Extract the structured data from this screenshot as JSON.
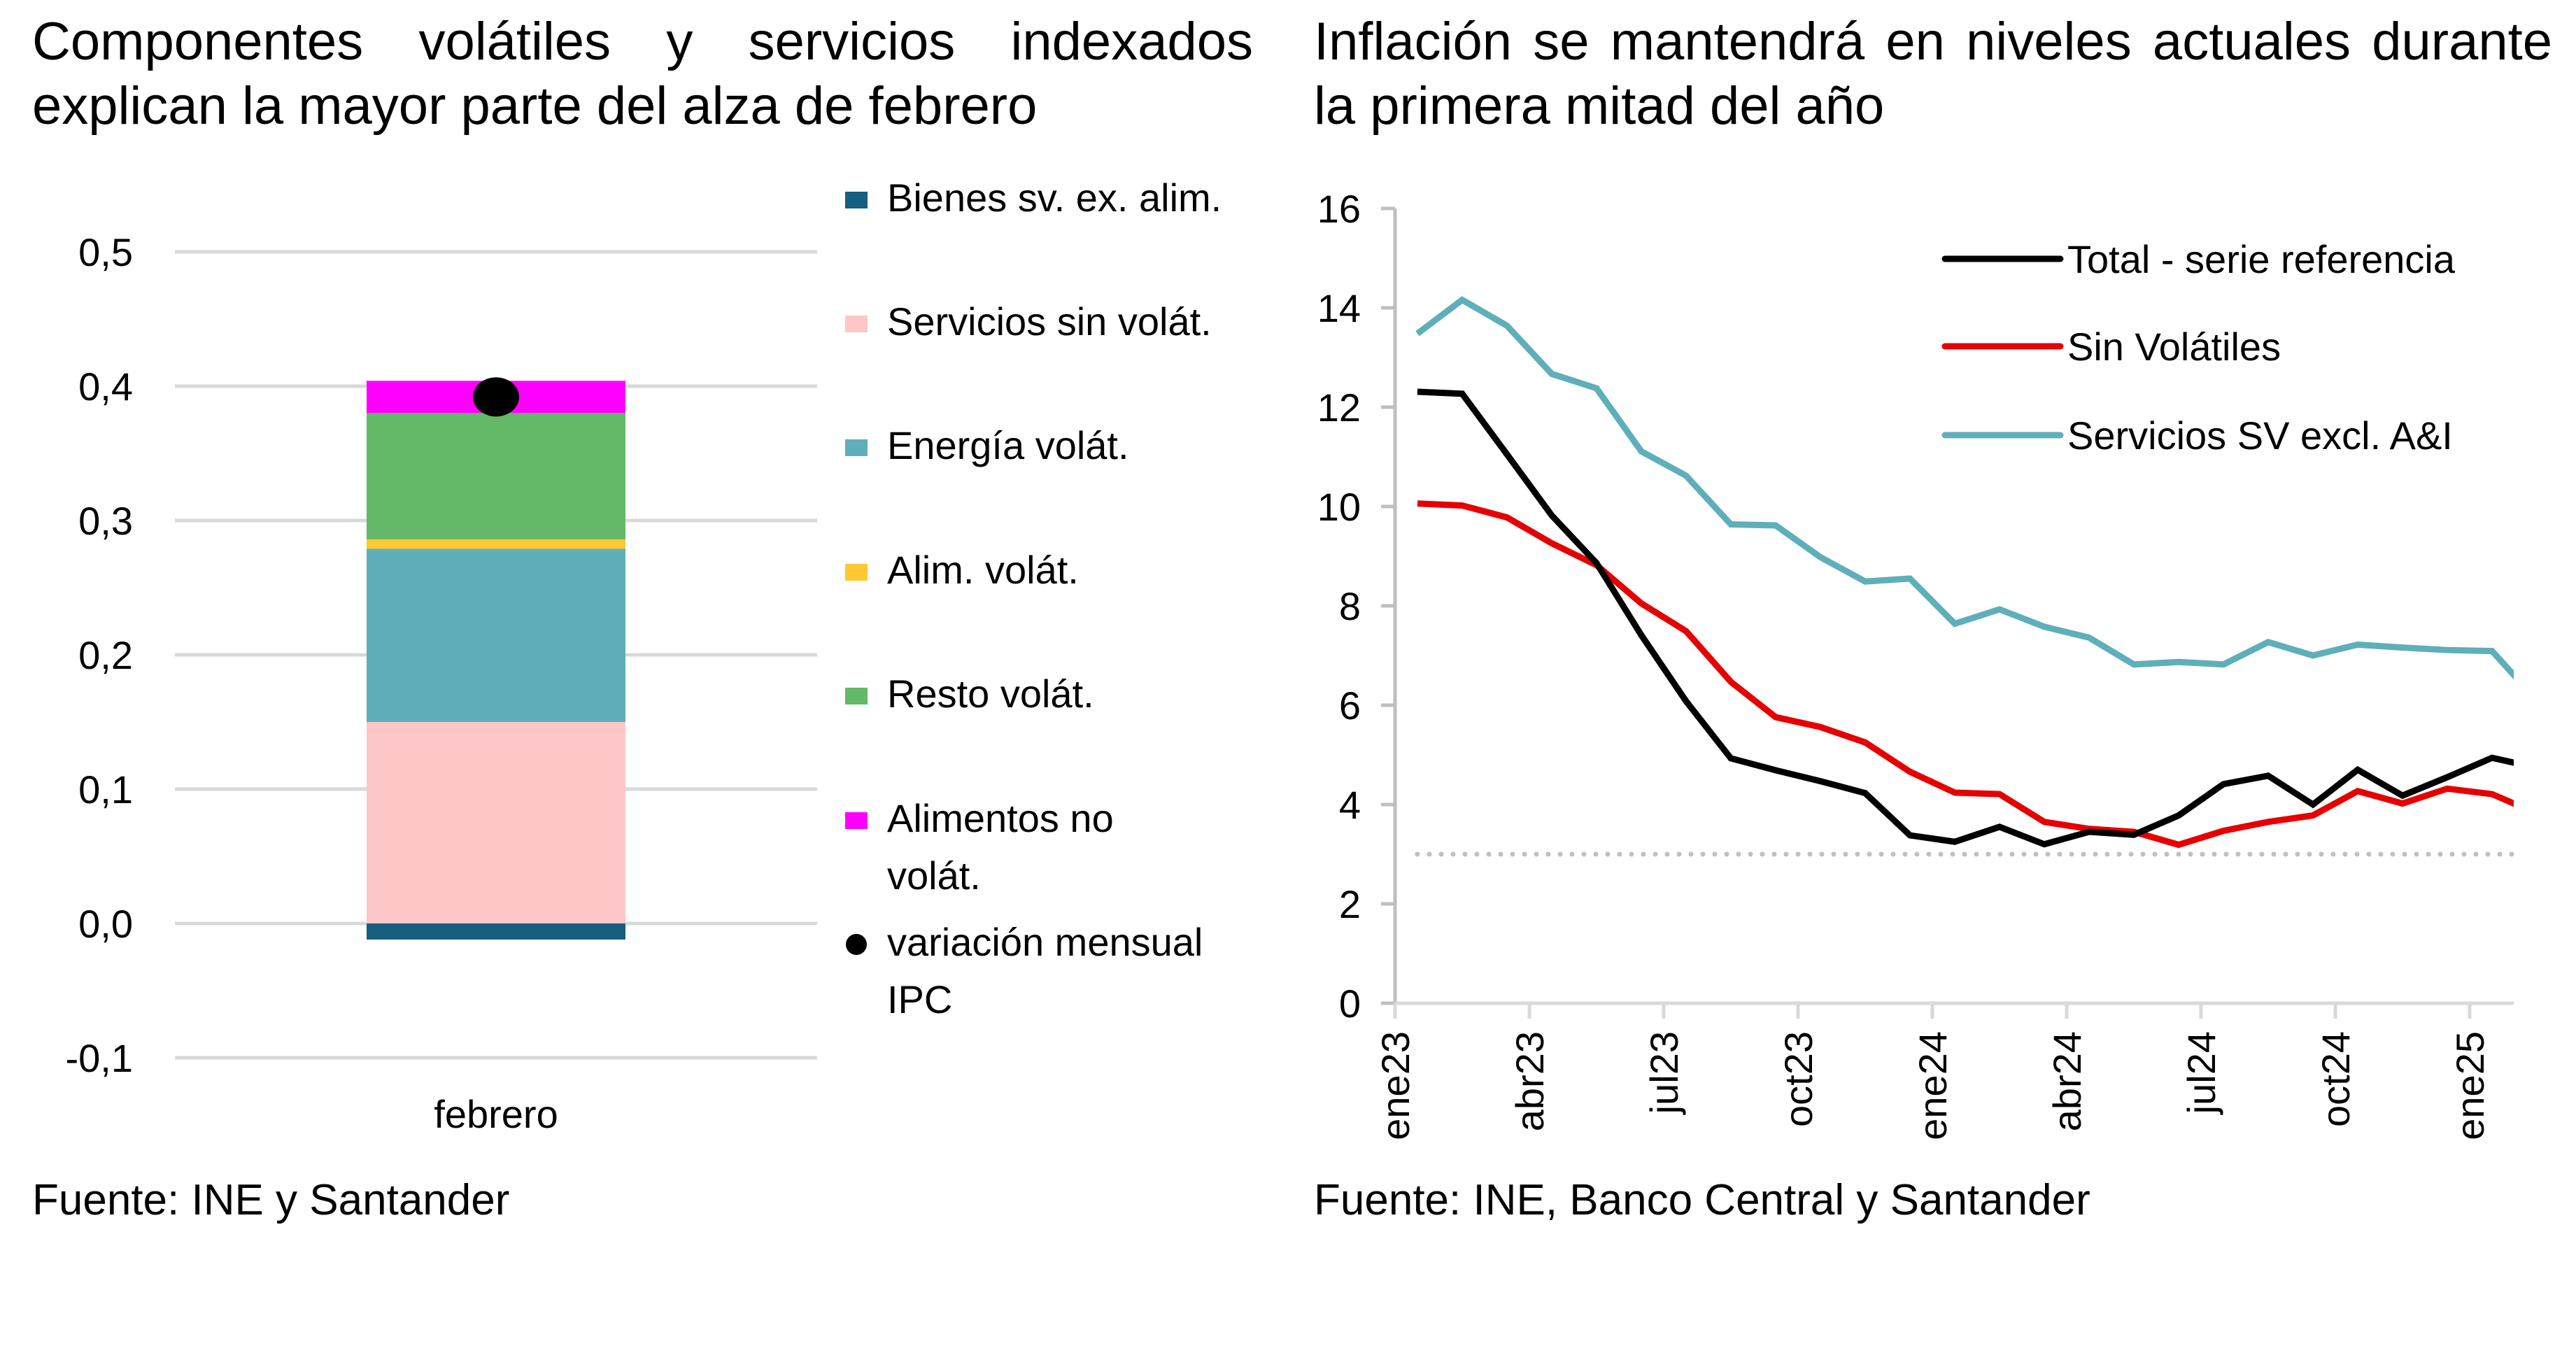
{
  "left_panel": {
    "title": "Componentes volátiles y servicios indexados explican la mayor parte del alza de febrero",
    "source": "Fuente: INE y Santander"
  },
  "right_panel": {
    "title": "Inflación se mantendrá en niveles actuales durante la primera mitad del año",
    "source": "Fuente: INE, Banco Central y Santander"
  },
  "chart_data": [
    {
      "type": "bar",
      "stacked": true,
      "title": "Componentes volátiles y servicios indexados explican la mayor parte del alza de febrero",
      "categories": [
        "febrero"
      ],
      "xlabel": "",
      "ylabel": "",
      "ylim": [
        -0.1,
        0.5
      ],
      "yticks": [
        -0.1,
        0.0,
        0.1,
        0.2,
        0.3,
        0.4,
        0.5
      ],
      "ytick_labels": [
        "-0,1",
        "0,0",
        "0,1",
        "0,2",
        "0,3",
        "0,4",
        "0,5"
      ],
      "grid": true,
      "legend_position": "right",
      "series": [
        {
          "name": "Bienes sv. ex. alim.",
          "color": "#165f80",
          "values": [
            -0.012
          ]
        },
        {
          "name": "Servicios sin volát.",
          "color": "#fdc7c8",
          "values": [
            0.15
          ]
        },
        {
          "name": "Energía volát.",
          "color": "#5eafba",
          "values": [
            0.129
          ]
        },
        {
          "name": "Alim. volát.",
          "color": "#fdc832",
          "values": [
            0.007
          ]
        },
        {
          "name": "Resto volát.",
          "color": "#63b968",
          "values": [
            0.094
          ]
        },
        {
          "name": "Alimentos no volát.",
          "legend_lines": [
            "Alimentos no",
            "volát."
          ],
          "color": "#ff00ff",
          "values": [
            0.024
          ]
        }
      ],
      "markers": [
        {
          "name": "variación mensual IPC",
          "legend_lines": [
            "variación mensual",
            "IPC"
          ],
          "color": "#000000",
          "values": [
            0.392
          ]
        }
      ]
    },
    {
      "type": "line",
      "title": "Inflación se mantendrá en niveles actuales durante la primera mitad del año",
      "x": [
        "ene23",
        "feb23",
        "mar23",
        "abr23",
        "may23",
        "jun23",
        "jul23",
        "ago23",
        "sep23",
        "oct23",
        "nov23",
        "dic23",
        "ene24",
        "feb24",
        "mar24",
        "abr24",
        "may24",
        "jun24",
        "jul24",
        "ago24",
        "sep24",
        "oct24",
        "nov24",
        "dic24",
        "ene25"
      ],
      "xtick_labels": [
        "ene23",
        "abr23",
        "jul23",
        "oct23",
        "ene24",
        "abr24",
        "jul24",
        "oct24",
        "ene25"
      ],
      "xlabel": "",
      "ylabel": "",
      "ylim": [
        0,
        16
      ],
      "yticks": [
        0,
        2,
        4,
        6,
        8,
        10,
        12,
        14,
        16
      ],
      "grid": false,
      "legend_position": "top-right",
      "reference_line": {
        "value": 3,
        "style": "dotted",
        "color": "#c0c0c0"
      },
      "series": [
        {
          "name": "Total - serie referencia",
          "color": "#000000",
          "values": [
            12.31,
            12.27,
            11.05,
            9.82,
            8.86,
            7.41,
            6.08,
            4.93,
            4.69,
            4.47,
            4.23,
            3.38,
            3.25,
            3.55,
            3.2,
            3.45,
            3.39,
            3.78,
            4.41,
            4.58,
            4.0,
            4.7,
            4.18,
            4.55,
            4.94
          ]
        },
        {
          "name": "Sin Volátiles",
          "color": "#e60000",
          "values": [
            10.06,
            10.02,
            9.78,
            9.26,
            8.82,
            8.05,
            7.49,
            6.47,
            5.76,
            5.56,
            5.25,
            4.66,
            4.24,
            4.21,
            3.65,
            3.51,
            3.45,
            3.19,
            3.47,
            3.65,
            3.78,
            4.27,
            4.02,
            4.32,
            4.21
          ]
        },
        {
          "name": "Servicios SV excl. A&I",
          "color": "#5eafba",
          "values": [
            13.48,
            14.16,
            13.64,
            12.67,
            12.38,
            11.11,
            10.62,
            9.64,
            9.62,
            8.98,
            8.49,
            8.55,
            7.64,
            7.93,
            7.58,
            7.36,
            6.82,
            6.87,
            6.82,
            7.27,
            7.0,
            7.22,
            7.16,
            7.11,
            7.09
          ]
        }
      ],
      "clipped_trailing_values": {
        "Total - serie referencia": 4.74,
        "Sin Volátiles": 3.82,
        "Servicios SV excl. A&I": 6.1
      }
    }
  ]
}
